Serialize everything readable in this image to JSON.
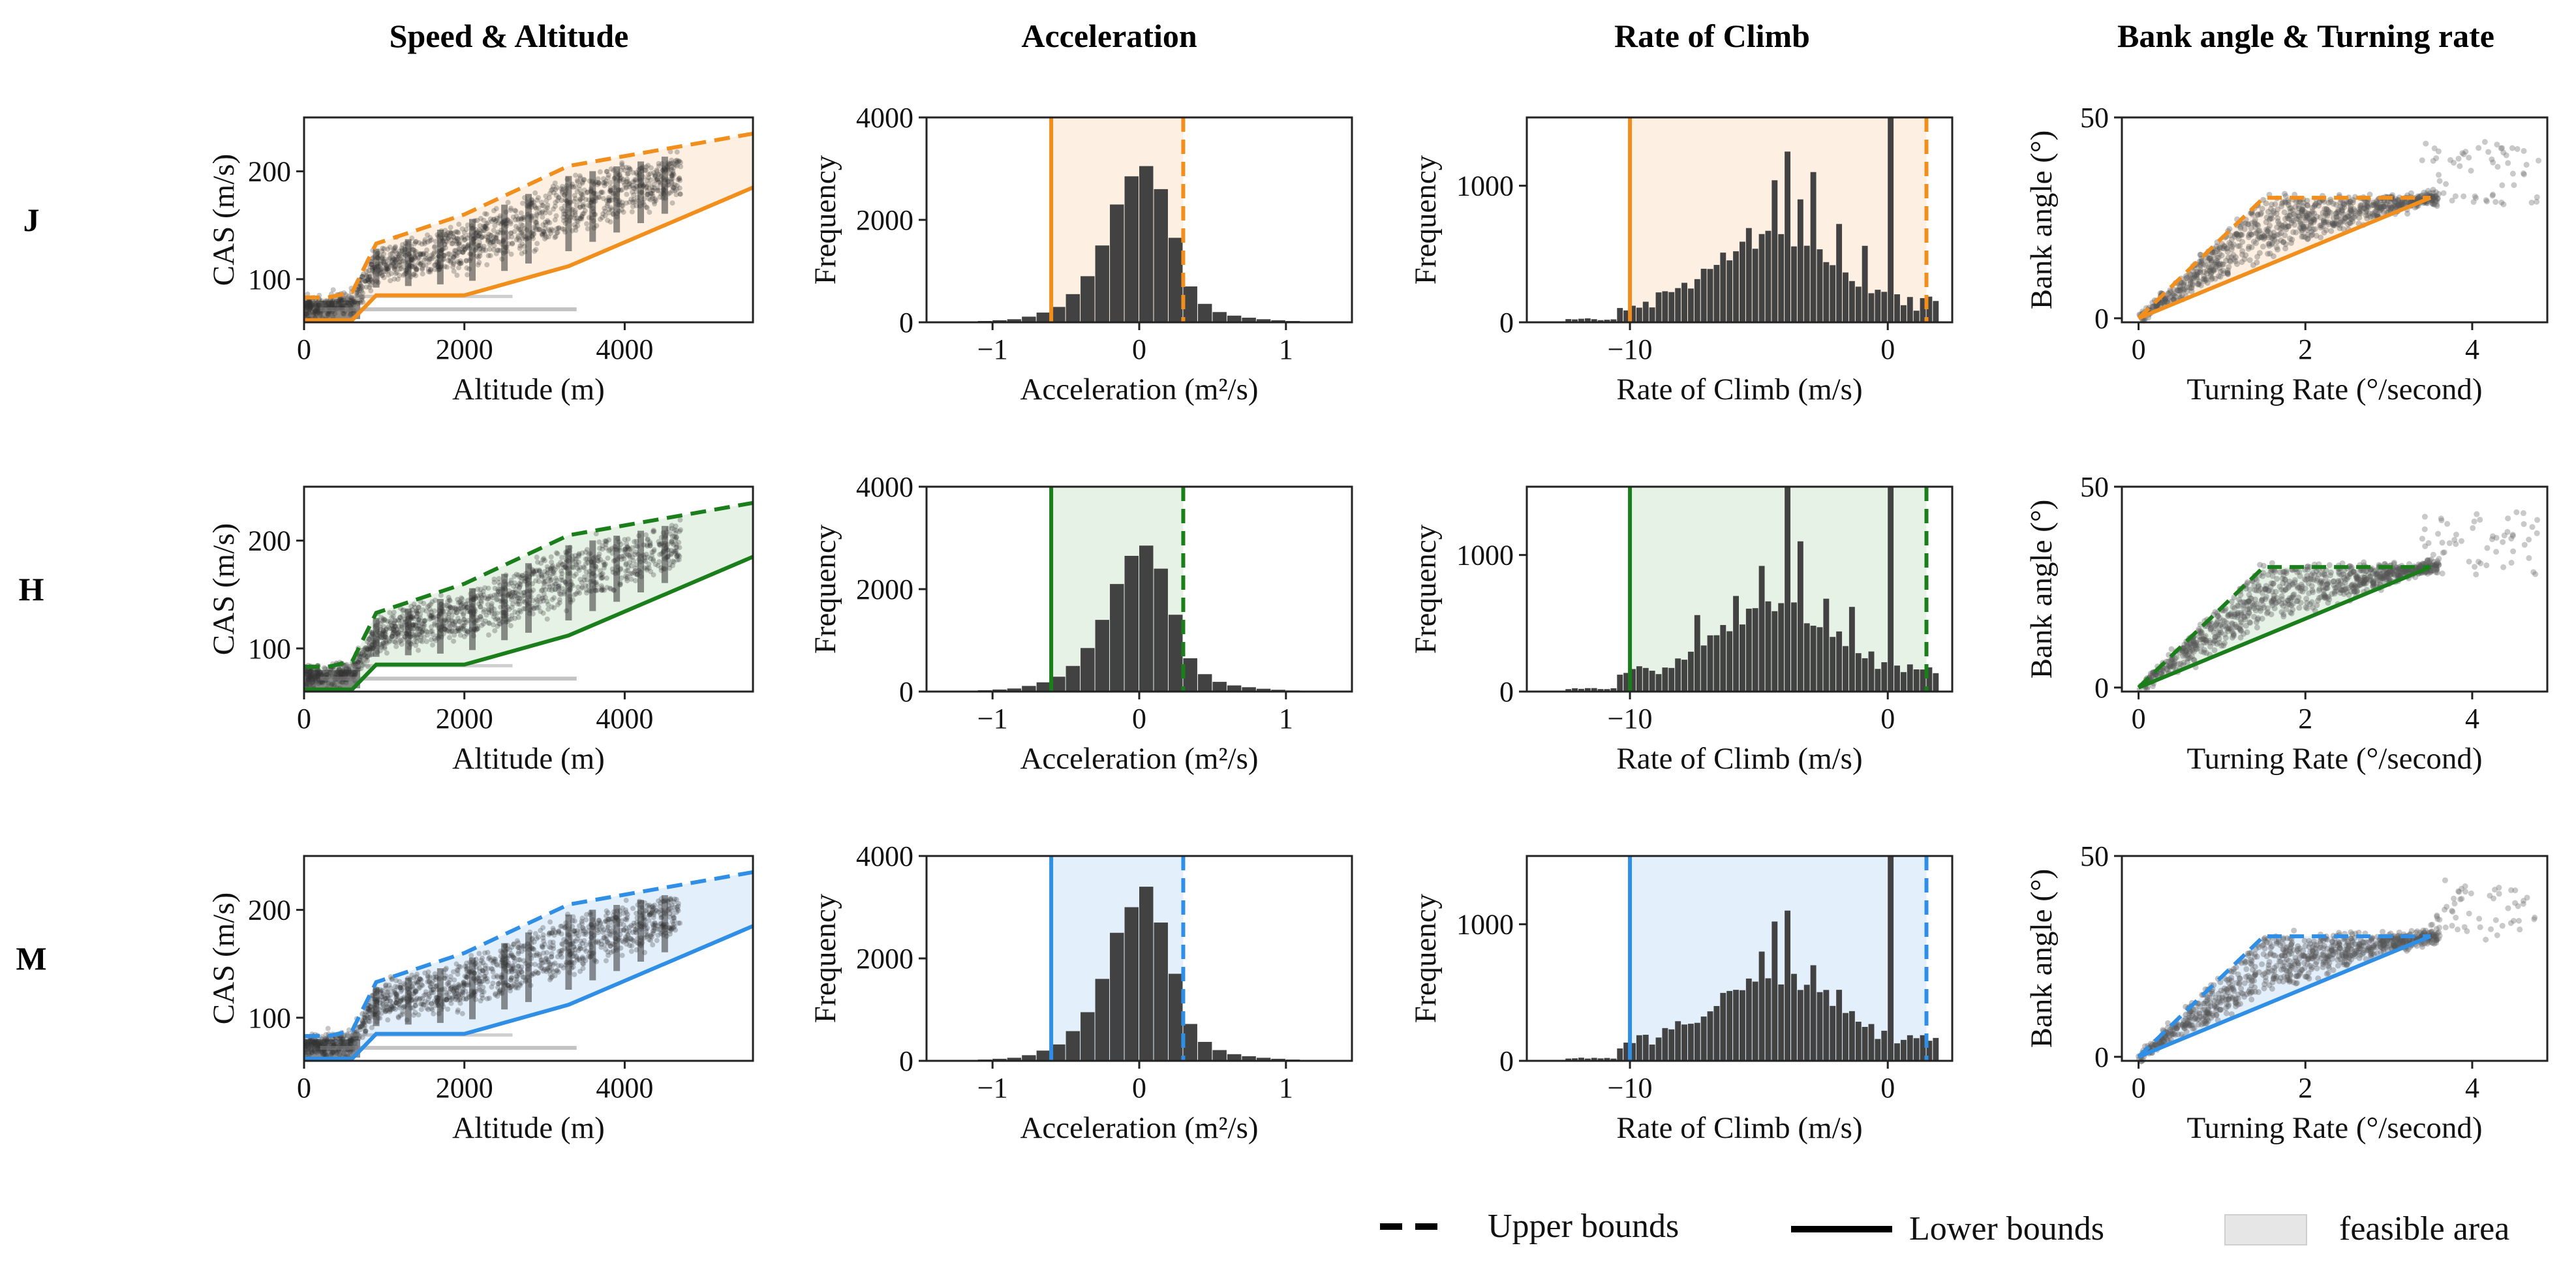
{
  "figure": {
    "column_titles": [
      "Speed & Altitude",
      "Acceleration",
      "Rate of Climb",
      "Bank angle & Turning rate"
    ],
    "row_labels": [
      "J",
      "H",
      "M"
    ],
    "row_colors": [
      "#f28e1c",
      "#1a7f1a",
      "#2f8fe6"
    ],
    "row_fills": [
      "#fdf0e2",
      "#e6f2e6",
      "#e3effb"
    ],
    "legend": {
      "upper": "Upper bounds",
      "lower": "Lower bounds",
      "feasible": "feasible area"
    }
  },
  "chart_data": [
    {
      "type": "scatter",
      "panel": "Speed & Altitude",
      "xlabel": "Altitude (m)",
      "ylabel": "CAS (m/s)",
      "xlim": [
        0,
        5600
      ],
      "ylim": [
        60,
        250
      ],
      "xticks": [
        0,
        2000,
        4000
      ],
      "yticks": [
        100,
        200
      ],
      "upper_bound": {
        "x": [
          0,
          300,
          600,
          900,
          2000,
          3300,
          5600
        ],
        "y": [
          83,
          83,
          88,
          133,
          160,
          205,
          235
        ]
      },
      "lower_bound": {
        "x": [
          0,
          300,
          600,
          900,
          2000,
          3300,
          5600
        ],
        "y": [
          62,
          62,
          62,
          85,
          85,
          112,
          185
        ]
      }
    },
    {
      "type": "bar",
      "panel": "Acceleration",
      "xlabel": "Acceleration (m²/s)",
      "ylabel": "Frequency",
      "xlim": [
        -1.45,
        1.45
      ],
      "ylim": [
        0,
        4000
      ],
      "xticks": [
        -1,
        0,
        1
      ],
      "yticks": [
        0,
        2000,
        4000
      ],
      "bin_width": 0.1,
      "bin_start": [
        -1.2,
        -1.1,
        -1.0,
        -0.9,
        -0.8,
        -0.7,
        -0.6,
        -0.5,
        -0.4,
        -0.3,
        -0.2,
        -0.1,
        0.0,
        0.1,
        0.2,
        0.3,
        0.4,
        0.5,
        0.6,
        0.7,
        0.8,
        0.9,
        1.0,
        1.1,
        1.2
      ],
      "series": [
        {
          "name": "J",
          "values": [
            10,
            25,
            40,
            60,
            110,
            190,
            300,
            550,
            900,
            1500,
            2300,
            2850,
            3050,
            2600,
            1650,
            700,
            360,
            200,
            130,
            90,
            60,
            40,
            25,
            15,
            8
          ]
        },
        {
          "name": "H",
          "values": [
            10,
            25,
            40,
            60,
            110,
            180,
            290,
            500,
            850,
            1400,
            2100,
            2650,
            2850,
            2400,
            1500,
            650,
            340,
            190,
            120,
            85,
            55,
            35,
            22,
            15,
            8
          ]
        },
        {
          "name": "M",
          "values": [
            10,
            25,
            40,
            60,
            110,
            200,
            320,
            580,
            950,
            1600,
            2500,
            3000,
            3400,
            2700,
            1700,
            720,
            370,
            210,
            130,
            90,
            60,
            40,
            25,
            15,
            8
          ]
        }
      ],
      "lower_bound": -0.6,
      "upper_bound": 0.3
    },
    {
      "type": "bar",
      "panel": "Rate of Climb",
      "xlabel": "Rate of Climb (m/s)",
      "ylabel": "Frequency",
      "xlim": [
        -14,
        2.5
      ],
      "ylim": [
        0,
        1500
      ],
      "xticks": [
        -10,
        0
      ],
      "yticks": [
        0,
        1000
      ],
      "bin_width": 0.25,
      "series": [
        {
          "name": "J",
          "spikes": [
            [
              -6.0,
              520
            ],
            [
              -5.5,
              690
            ],
            [
              -4.5,
              1040
            ],
            [
              -4.0,
              1250
            ],
            [
              -3.5,
              900
            ],
            [
              -3.0,
              1100
            ],
            [
              -2.0,
              720
            ],
            [
              -1.0,
              560
            ],
            [
              0.0,
              1500
            ]
          ]
        },
        {
          "name": "H",
          "spikes": [
            [
              -7.5,
              560
            ],
            [
              -6.0,
              700
            ],
            [
              -5.0,
              920
            ],
            [
              -4.0,
              1500
            ],
            [
              -3.5,
              1100
            ],
            [
              -2.5,
              680
            ],
            [
              -1.5,
              620
            ],
            [
              0.0,
              1500
            ]
          ]
        },
        {
          "name": "M",
          "spikes": [
            [
              -6.0,
              520
            ],
            [
              -5.0,
              800
            ],
            [
              -4.5,
              1020
            ],
            [
              -4.0,
              1100
            ],
            [
              -3.0,
              700
            ],
            [
              -2.0,
              520
            ],
            [
              0.0,
              1500
            ]
          ]
        }
      ],
      "lower_bound": -10,
      "upper_bound": 1.5
    },
    {
      "type": "scatter",
      "panel": "Bank angle & Turning rate",
      "xlabel": "Turning Rate (°/second)",
      "ylabel": "Bank angle (°)",
      "xlim": [
        -0.2,
        4.9
      ],
      "ylim": [
        -1,
        50
      ],
      "xticks": [
        0,
        2,
        4
      ],
      "yticks": [
        0,
        50
      ],
      "upper_bound": {
        "x": [
          0,
          1.5,
          3.5
        ],
        "y": [
          0,
          30,
          30
        ]
      },
      "lower_bound": {
        "x": [
          0,
          3.5
        ],
        "y": [
          0,
          30
        ]
      }
    }
  ]
}
